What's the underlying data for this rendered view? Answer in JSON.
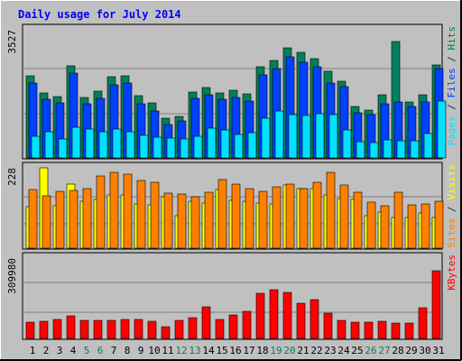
{
  "chart_data": {
    "type": "bar",
    "title": "Daily usage for July 2014",
    "categories": [
      "1",
      "2",
      "3",
      "4",
      "5",
      "6",
      "7",
      "8",
      "9",
      "10",
      "11",
      "12",
      "13",
      "14",
      "15",
      "16",
      "17",
      "18",
      "19",
      "20",
      "21",
      "22",
      "23",
      "24",
      "25",
      "26",
      "27",
      "28",
      "29",
      "30",
      "31"
    ],
    "weekend_days": [
      "5",
      "6",
      "12",
      "13",
      "19",
      "20",
      "26",
      "27"
    ],
    "panels": [
      {
        "id": "top",
        "ymax": 3527,
        "ymax_label": "3527",
        "right_label": [
          {
            "text": "Pages",
            "color": "#00E0FF"
          },
          {
            "text": " / ",
            "color": "#004040"
          },
          {
            "text": "Files",
            "color": "#0040FF"
          },
          {
            "text": " / ",
            "color": "#004040"
          },
          {
            "text": "Hits",
            "color": "#008040"
          }
        ],
        "series": [
          {
            "name": "Hits",
            "color": "#00805C",
            "values": [
              2460,
              1960,
              1840,
              2780,
              1820,
              2000,
              2440,
              2460,
              1860,
              1660,
              1200,
              1250,
              1990,
              2120,
              1960,
              2040,
              1920,
              2740,
              2920,
              3300,
              3180,
              2980,
              2600,
              2300,
              1540,
              1450,
              1890,
              3500,
              1680,
              1900,
              2800
            ]
          },
          {
            "name": "Files",
            "color": "#0040FF",
            "values": [
              2250,
              1750,
              1650,
              2550,
              1620,
              1780,
              2200,
              2240,
              1630,
              1420,
              1000,
              1100,
              1780,
              1900,
              1760,
              1830,
              1700,
              2500,
              2680,
              3050,
              2880,
              2750,
              2250,
              2150,
              1360,
              1290,
              1640,
              1680,
              1550,
              1680,
              2680
            ]
          },
          {
            "name": "Pages",
            "color": "#00E0FF",
            "values": [
              650,
              790,
              570,
              920,
              860,
              780,
              880,
              790,
              680,
              630,
              590,
              570,
              650,
              900,
              830,
              700,
              750,
              1200,
              1400,
              1300,
              1280,
              1320,
              1310,
              830,
              490,
              450,
              540,
              510,
              510,
              730,
              1700
            ]
          }
        ]
      },
      {
        "id": "middle",
        "ymax": 228,
        "ymax_label": "228",
        "right_label": [
          {
            "text": "Sites",
            "color": "#FF8000"
          },
          {
            "text": " / ",
            "color": "#004040"
          },
          {
            "text": "Visits",
            "color": "#FFFF00"
          }
        ],
        "series": [
          {
            "name": "Visits",
            "color": "#FFFF00",
            "values": [
              118,
              228,
              120,
              181,
              134,
              139,
              151,
              151,
              126,
              122,
              145,
              92,
              132,
              127,
              166,
              136,
              132,
              127,
              125,
              180,
              170,
              168,
              152,
              140,
              138,
              91,
              102,
              88,
              87,
              100,
              88
            ]
          },
          {
            "name": "Sites",
            "color": "#FF8000",
            "values": [
              167,
              148,
              161,
              165,
              170,
              204,
              214,
              209,
              193,
              186,
              157,
              154,
              146,
              159,
              194,
              181,
              170,
              162,
              175,
              183,
              168,
              188,
              215,
              180,
              158,
              131,
              120,
              160,
              123,
              125,
              132
            ]
          }
        ]
      },
      {
        "id": "bottom",
        "ymax": 309980,
        "ymax_label": "309980",
        "right_label": [
          {
            "text": "KBytes",
            "color": "#FF0000"
          }
        ],
        "series": [
          {
            "name": "KBytes",
            "color": "#FF0000",
            "values": [
              62000,
              64000,
              70000,
              84000,
              68000,
              67000,
              69000,
              71000,
              73000,
              65000,
              45000,
              67000,
              77000,
              118000,
              71000,
              90000,
              102000,
              170000,
              185000,
              175000,
              134000,
              147000,
              96000,
              69000,
              62000,
              60000,
              64000,
              57000,
              59000,
              115000,
              255000
            ]
          }
        ]
      }
    ]
  }
}
